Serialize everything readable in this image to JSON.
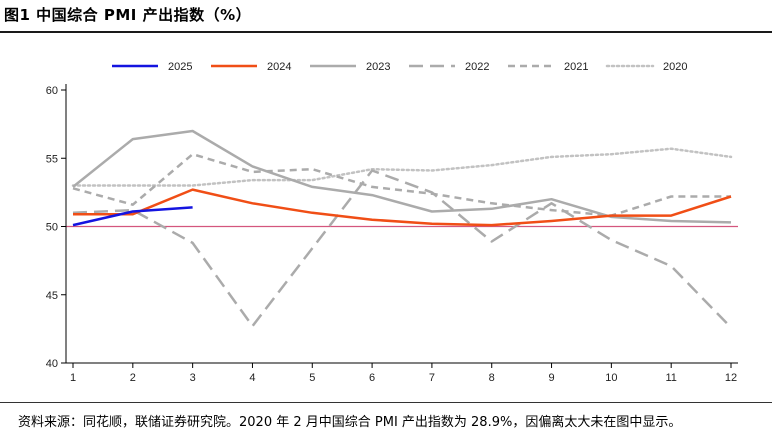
{
  "title": "图1  中国综合 PMI 产出指数（%）",
  "source": "资料来源：同花顺，联储证券研究院。2020 年 2 月中国综合 PMI 产出指数为 28.9%，因偏离太大未在图中显示。",
  "chart_data": {
    "type": "line",
    "x": [
      1,
      2,
      3,
      4,
      5,
      6,
      7,
      8,
      9,
      10,
      11,
      12
    ],
    "ylim": [
      40,
      60
    ],
    "yticks": [
      40,
      45,
      50,
      55,
      60
    ],
    "xticks": [
      "1",
      "2",
      "3",
      "4",
      "5",
      "6",
      "7",
      "8",
      "9",
      "10",
      "11",
      "12"
    ],
    "reference_line": 50,
    "reference_color": "#d4567e",
    "legend_position": "top",
    "grid": false,
    "series": [
      {
        "name": "2025",
        "color": "#1414e0",
        "dash": "solid",
        "width": 2.5,
        "values": [
          50.1,
          51.1,
          51.4,
          null,
          null,
          null,
          null,
          null,
          null,
          null,
          null,
          null
        ]
      },
      {
        "name": "2024",
        "color": "#f04e16",
        "dash": "solid",
        "width": 2.5,
        "values": [
          50.9,
          50.9,
          52.7,
          51.7,
          51.0,
          50.5,
          50.2,
          50.1,
          50.4,
          50.8,
          50.8,
          52.2
        ]
      },
      {
        "name": "2023",
        "color": "#ababab",
        "dash": "solid",
        "width": 2.5,
        "values": [
          52.9,
          56.4,
          57.0,
          54.4,
          52.9,
          52.3,
          51.1,
          51.3,
          52.0,
          50.7,
          50.4,
          50.3
        ]
      },
      {
        "name": "2022",
        "color": "#ababab",
        "dash": "longdash",
        "width": 2.5,
        "values": [
          51.0,
          51.2,
          48.8,
          42.7,
          48.4,
          54.1,
          52.5,
          48.9,
          51.7,
          49.0,
          47.1,
          42.6
        ]
      },
      {
        "name": "2021",
        "color": "#ababab",
        "dash": "shortdash",
        "width": 2.5,
        "values": [
          52.8,
          51.6,
          55.3,
          54.0,
          54.2,
          52.9,
          52.4,
          51.7,
          51.2,
          50.8,
          52.2,
          52.2
        ]
      },
      {
        "name": "2020",
        "color": "#c2c2c2",
        "dash": "dot",
        "width": 2.5,
        "values": [
          53.0,
          null,
          53.0,
          53.4,
          53.4,
          54.2,
          54.1,
          54.5,
          55.1,
          55.3,
          55.7,
          55.1
        ]
      }
    ]
  }
}
